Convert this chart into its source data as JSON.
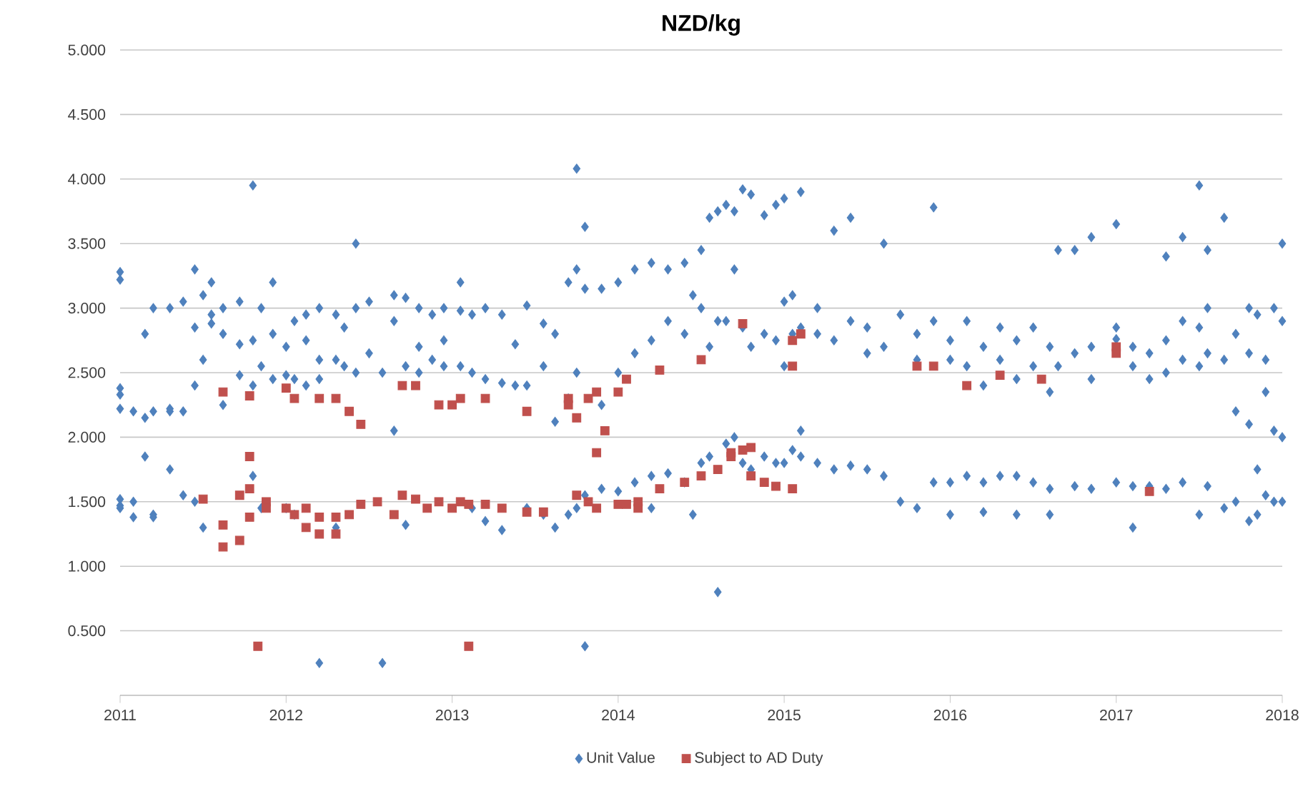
{
  "chart_data": {
    "type": "scatter",
    "title": "NZD/kg",
    "xlim": [
      2011,
      2018
    ],
    "xticks": [
      2011,
      2012,
      2013,
      2014,
      2015,
      2016,
      2017,
      2018
    ],
    "ylim": [
      0,
      5
    ],
    "yticks": [
      {
        "value": 0.5,
        "label": "0.500"
      },
      {
        "value": 1,
        "label": "1.000"
      },
      {
        "value": 1.5,
        "label": "1.500"
      },
      {
        "value": 2,
        "label": "2.000"
      },
      {
        "value": 2.5,
        "label": "2.500"
      },
      {
        "value": 3,
        "label": "3.000"
      },
      {
        "value": 3.5,
        "label": "3.500"
      },
      {
        "value": 4,
        "label": "4.000"
      },
      {
        "value": 4.5,
        "label": "4.500"
      },
      {
        "value": 5,
        "label": "5.000"
      }
    ],
    "grid": "y",
    "legend": "bottom",
    "series": [
      {
        "name": "Unit Value",
        "color": "#4f81bd",
        "marker": "diamond",
        "x": [
          2011.0,
          2011.0,
          2011.0,
          2011.0,
          2011.0,
          2011.0,
          2011.0,
          2011.0,
          2011.08,
          2011.08,
          2011.08,
          2011.15,
          2011.15,
          2011.15,
          2011.2,
          2011.2,
          2011.2,
          2011.2,
          2011.3,
          2011.3,
          2011.3,
          2011.3,
          2011.38,
          2011.38,
          2011.38,
          2011.45,
          2011.45,
          2011.45,
          2011.45,
          2011.5,
          2011.5,
          2011.5,
          2011.55,
          2011.55,
          2011.55,
          2011.62,
          2011.62,
          2011.62,
          2011.72,
          2011.72,
          2011.72,
          2011.8,
          2011.8,
          2011.8,
          2011.8,
          2011.85,
          2011.85,
          2011.85,
          2011.92,
          2011.92,
          2011.92,
          2012.0,
          2012.0,
          2012.0,
          2012.05,
          2012.05,
          2012.05,
          2012.12,
          2012.12,
          2012.12,
          2012.2,
          2012.2,
          2012.2,
          2012.2,
          2012.3,
          2012.3,
          2012.3,
          2012.35,
          2012.35,
          2012.42,
          2012.42,
          2012.42,
          2012.5,
          2012.5,
          2012.58,
          2012.58,
          2012.65,
          2012.65,
          2012.65,
          2012.72,
          2012.72,
          2012.72,
          2012.8,
          2012.8,
          2012.8,
          2012.88,
          2012.88,
          2012.95,
          2012.95,
          2012.95,
          2013.05,
          2013.05,
          2013.05,
          2013.12,
          2013.12,
          2013.12,
          2013.2,
          2013.2,
          2013.2,
          2013.3,
          2013.3,
          2013.3,
          2013.38,
          2013.38,
          2013.45,
          2013.45,
          2013.45,
          2013.55,
          2013.55,
          2013.55,
          2013.62,
          2013.62,
          2013.62,
          2013.7,
          2013.7,
          2013.7,
          2013.75,
          2013.75,
          2013.75,
          2013.75,
          2013.8,
          2013.8,
          2013.8,
          2013.8,
          2013.9,
          2013.9,
          2013.9,
          2014.0,
          2014.0,
          2014.0,
          2014.1,
          2014.1,
          2014.1,
          2014.2,
          2014.2,
          2014.2,
          2014.2,
          2014.3,
          2014.3,
          2014.3,
          2014.4,
          2014.4,
          2014.4,
          2014.45,
          2014.45,
          2014.5,
          2014.5,
          2014.5,
          2014.55,
          2014.55,
          2014.55,
          2014.6,
          2014.6,
          2014.6,
          2014.65,
          2014.65,
          2014.65,
          2014.7,
          2014.7,
          2014.7,
          2014.75,
          2014.75,
          2014.75,
          2014.8,
          2014.8,
          2014.8,
          2014.88,
          2014.88,
          2014.88,
          2014.95,
          2014.95,
          2014.95,
          2015.0,
          2015.0,
          2015.0,
          2015.0,
          2015.05,
          2015.05,
          2015.05,
          2015.1,
          2015.1,
          2015.1,
          2015.1,
          2015.2,
          2015.2,
          2015.2,
          2015.3,
          2015.3,
          2015.3,
          2015.4,
          2015.4,
          2015.4,
          2015.5,
          2015.5,
          2015.5,
          2015.6,
          2015.6,
          2015.6,
          2015.7,
          2015.7,
          2015.8,
          2015.8,
          2015.8,
          2015.9,
          2015.9,
          2015.9,
          2016.0,
          2016.0,
          2016.0,
          2016.0,
          2016.1,
          2016.1,
          2016.1,
          2016.2,
          2016.2,
          2016.2,
          2016.2,
          2016.3,
          2016.3,
          2016.3,
          2016.4,
          2016.4,
          2016.4,
          2016.4,
          2016.5,
          2016.5,
          2016.5,
          2016.6,
          2016.6,
          2016.6,
          2016.6,
          2016.65,
          2016.65,
          2016.75,
          2016.75,
          2016.75,
          2016.85,
          2016.85,
          2016.85,
          2016.85,
          2017.0,
          2017.0,
          2017.0,
          2017.0,
          2017.1,
          2017.1,
          2017.1,
          2017.1,
          2017.2,
          2017.2,
          2017.2,
          2017.3,
          2017.3,
          2017.3,
          2017.3,
          2017.4,
          2017.4,
          2017.4,
          2017.4,
          2017.5,
          2017.5,
          2017.5,
          2017.5,
          2017.55,
          2017.55,
          2017.55,
          2017.55,
          2017.65,
          2017.65,
          2017.65,
          2017.72,
          2017.72,
          2017.72,
          2017.8,
          2017.8,
          2017.8,
          2017.8,
          2017.85,
          2017.85,
          2017.85,
          2017.9,
          2017.9,
          2017.9,
          2017.95,
          2017.95,
          2017.95,
          2018.0,
          2018.0,
          2018.0,
          2018.0
        ],
        "values": [
          3.28,
          3.22,
          2.38,
          2.33,
          2.22,
          1.47,
          1.45,
          1.52,
          2.2,
          1.5,
          1.38,
          2.15,
          1.85,
          2.8,
          3.0,
          2.2,
          1.4,
          1.38,
          2.2,
          1.75,
          3.0,
          2.22,
          3.05,
          2.2,
          1.55,
          3.3,
          2.85,
          2.4,
          1.5,
          3.1,
          2.6,
          1.3,
          3.2,
          2.95,
          2.88,
          2.25,
          2.8,
          3.0,
          3.05,
          2.72,
          2.48,
          3.95,
          2.75,
          2.4,
          1.7,
          3.0,
          2.55,
          1.45,
          2.8,
          3.2,
          2.45,
          2.7,
          2.48,
          1.45,
          2.9,
          2.45,
          1.4,
          2.75,
          2.95,
          2.4,
          3.0,
          2.6,
          2.45,
          0.25,
          2.95,
          2.6,
          1.3,
          2.85,
          2.55,
          3.5,
          3.0,
          2.5,
          3.05,
          2.65,
          2.5,
          0.25,
          3.1,
          2.9,
          2.05,
          3.08,
          2.55,
          1.32,
          3.0,
          2.7,
          2.5,
          2.95,
          2.6,
          2.75,
          2.55,
          3.0,
          3.2,
          2.55,
          2.98,
          2.95,
          2.5,
          1.45,
          2.45,
          3.0,
          1.35,
          2.95,
          2.42,
          1.28,
          2.72,
          2.4,
          3.02,
          2.4,
          1.45,
          2.88,
          2.55,
          1.4,
          2.8,
          2.12,
          1.3,
          3.2,
          2.3,
          1.4,
          4.08,
          3.3,
          2.5,
          1.45,
          3.63,
          3.15,
          1.55,
          0.38,
          3.15,
          2.25,
          1.6,
          3.2,
          2.5,
          1.58,
          3.3,
          2.65,
          1.65,
          3.35,
          2.75,
          1.7,
          1.45,
          3.3,
          2.9,
          1.72,
          3.35,
          2.8,
          1.65,
          3.1,
          1.4,
          3.45,
          3.0,
          1.8,
          3.7,
          2.7,
          1.85,
          3.75,
          2.9,
          0.8,
          3.8,
          2.9,
          1.95,
          3.75,
          3.3,
          2.0,
          3.92,
          2.85,
          1.8,
          3.88,
          2.7,
          1.75,
          3.72,
          2.8,
          1.85,
          3.8,
          2.75,
          1.8,
          3.85,
          3.05,
          2.55,
          1.8,
          3.1,
          2.8,
          1.9,
          3.9,
          2.85,
          2.05,
          1.85,
          3.0,
          2.8,
          1.8,
          3.6,
          2.75,
          1.75,
          3.7,
          2.9,
          1.78,
          2.85,
          2.65,
          1.75,
          3.5,
          2.7,
          1.7,
          2.95,
          1.5,
          2.8,
          2.6,
          1.45,
          3.78,
          2.9,
          1.65,
          2.75,
          2.6,
          1.65,
          1.4,
          2.9,
          2.55,
          1.7,
          2.7,
          2.4,
          1.65,
          1.42,
          2.85,
          2.6,
          1.7,
          2.75,
          2.45,
          1.7,
          1.4,
          2.85,
          2.55,
          1.65,
          2.7,
          2.35,
          1.6,
          1.4,
          3.45,
          2.55,
          3.45,
          2.65,
          1.62,
          3.55,
          2.7,
          2.45,
          1.6,
          3.65,
          2.85,
          2.76,
          1.65,
          2.7,
          2.55,
          1.62,
          1.3,
          2.65,
          2.45,
          1.62,
          3.4,
          2.75,
          2.5,
          1.6,
          3.55,
          2.9,
          2.6,
          1.65,
          3.95,
          2.85,
          2.55,
          1.4,
          3.45,
          3.0,
          2.65,
          1.62,
          3.7,
          2.6,
          1.45,
          2.8,
          2.2,
          1.5,
          3.0,
          2.65,
          2.1,
          1.35,
          2.95,
          1.75,
          1.4,
          2.6,
          2.35,
          1.55,
          3.0,
          2.05,
          1.5,
          3.5,
          2.9,
          2.0,
          1.5
        ]
      },
      {
        "name": "Subject to AD Duty",
        "color": "#c0504d",
        "marker": "square",
        "x": [
          2011.5,
          2011.62,
          2011.62,
          2011.62,
          2011.72,
          2011.72,
          2011.78,
          2011.78,
          2011.78,
          2011.78,
          2011.83,
          2011.88,
          2011.88,
          2012.0,
          2012.0,
          2012.05,
          2012.05,
          2012.12,
          2012.12,
          2012.2,
          2012.2,
          2012.2,
          2012.3,
          2012.3,
          2012.3,
          2012.38,
          2012.38,
          2012.45,
          2012.45,
          2012.55,
          2012.65,
          2012.7,
          2012.7,
          2012.78,
          2012.78,
          2012.85,
          2012.92,
          2012.92,
          2013.0,
          2013.0,
          2013.05,
          2013.05,
          2013.1,
          2013.1,
          2013.2,
          2013.2,
          2013.3,
          2013.45,
          2013.45,
          2013.55,
          2013.7,
          2013.7,
          2013.75,
          2013.75,
          2013.82,
          2013.82,
          2013.87,
          2013.87,
          2013.87,
          2013.92,
          2014.0,
          2014.0,
          2014.05,
          2014.05,
          2014.12,
          2014.12,
          2014.25,
          2014.25,
          2014.4,
          2014.5,
          2014.5,
          2014.6,
          2014.68,
          2014.68,
          2014.75,
          2014.75,
          2014.8,
          2014.8,
          2014.88,
          2014.95,
          2015.05,
          2015.05,
          2015.05,
          2015.1,
          2015.8,
          2015.9,
          2016.1,
          2016.3,
          2016.55,
          2017.0,
          2017.0,
          2017.2
        ],
        "values": [
          1.52,
          2.35,
          1.32,
          1.15,
          1.2,
          1.55,
          2.32,
          1.85,
          1.6,
          1.38,
          0.38,
          1.5,
          1.45,
          2.38,
          1.45,
          2.3,
          1.4,
          1.45,
          1.3,
          2.3,
          1.38,
          1.25,
          2.3,
          1.38,
          1.25,
          2.2,
          1.4,
          2.1,
          1.48,
          1.5,
          1.4,
          2.4,
          1.55,
          2.4,
          1.52,
          1.45,
          2.25,
          1.5,
          2.25,
          1.45,
          2.3,
          1.5,
          0.38,
          1.48,
          2.3,
          1.48,
          1.45,
          2.2,
          1.42,
          1.42,
          2.3,
          2.25,
          2.15,
          1.55,
          2.3,
          1.5,
          2.35,
          1.88,
          1.45,
          2.05,
          1.48,
          2.35,
          2.45,
          1.48,
          1.45,
          1.5,
          1.6,
          2.52,
          1.65,
          1.7,
          2.6,
          1.75,
          1.85,
          1.88,
          2.88,
          1.9,
          1.92,
          1.7,
          1.65,
          1.62,
          1.6,
          2.55,
          2.75,
          2.8,
          2.55,
          2.55,
          2.4,
          2.48,
          2.45,
          2.7,
          2.65,
          1.58
        ]
      }
    ]
  }
}
